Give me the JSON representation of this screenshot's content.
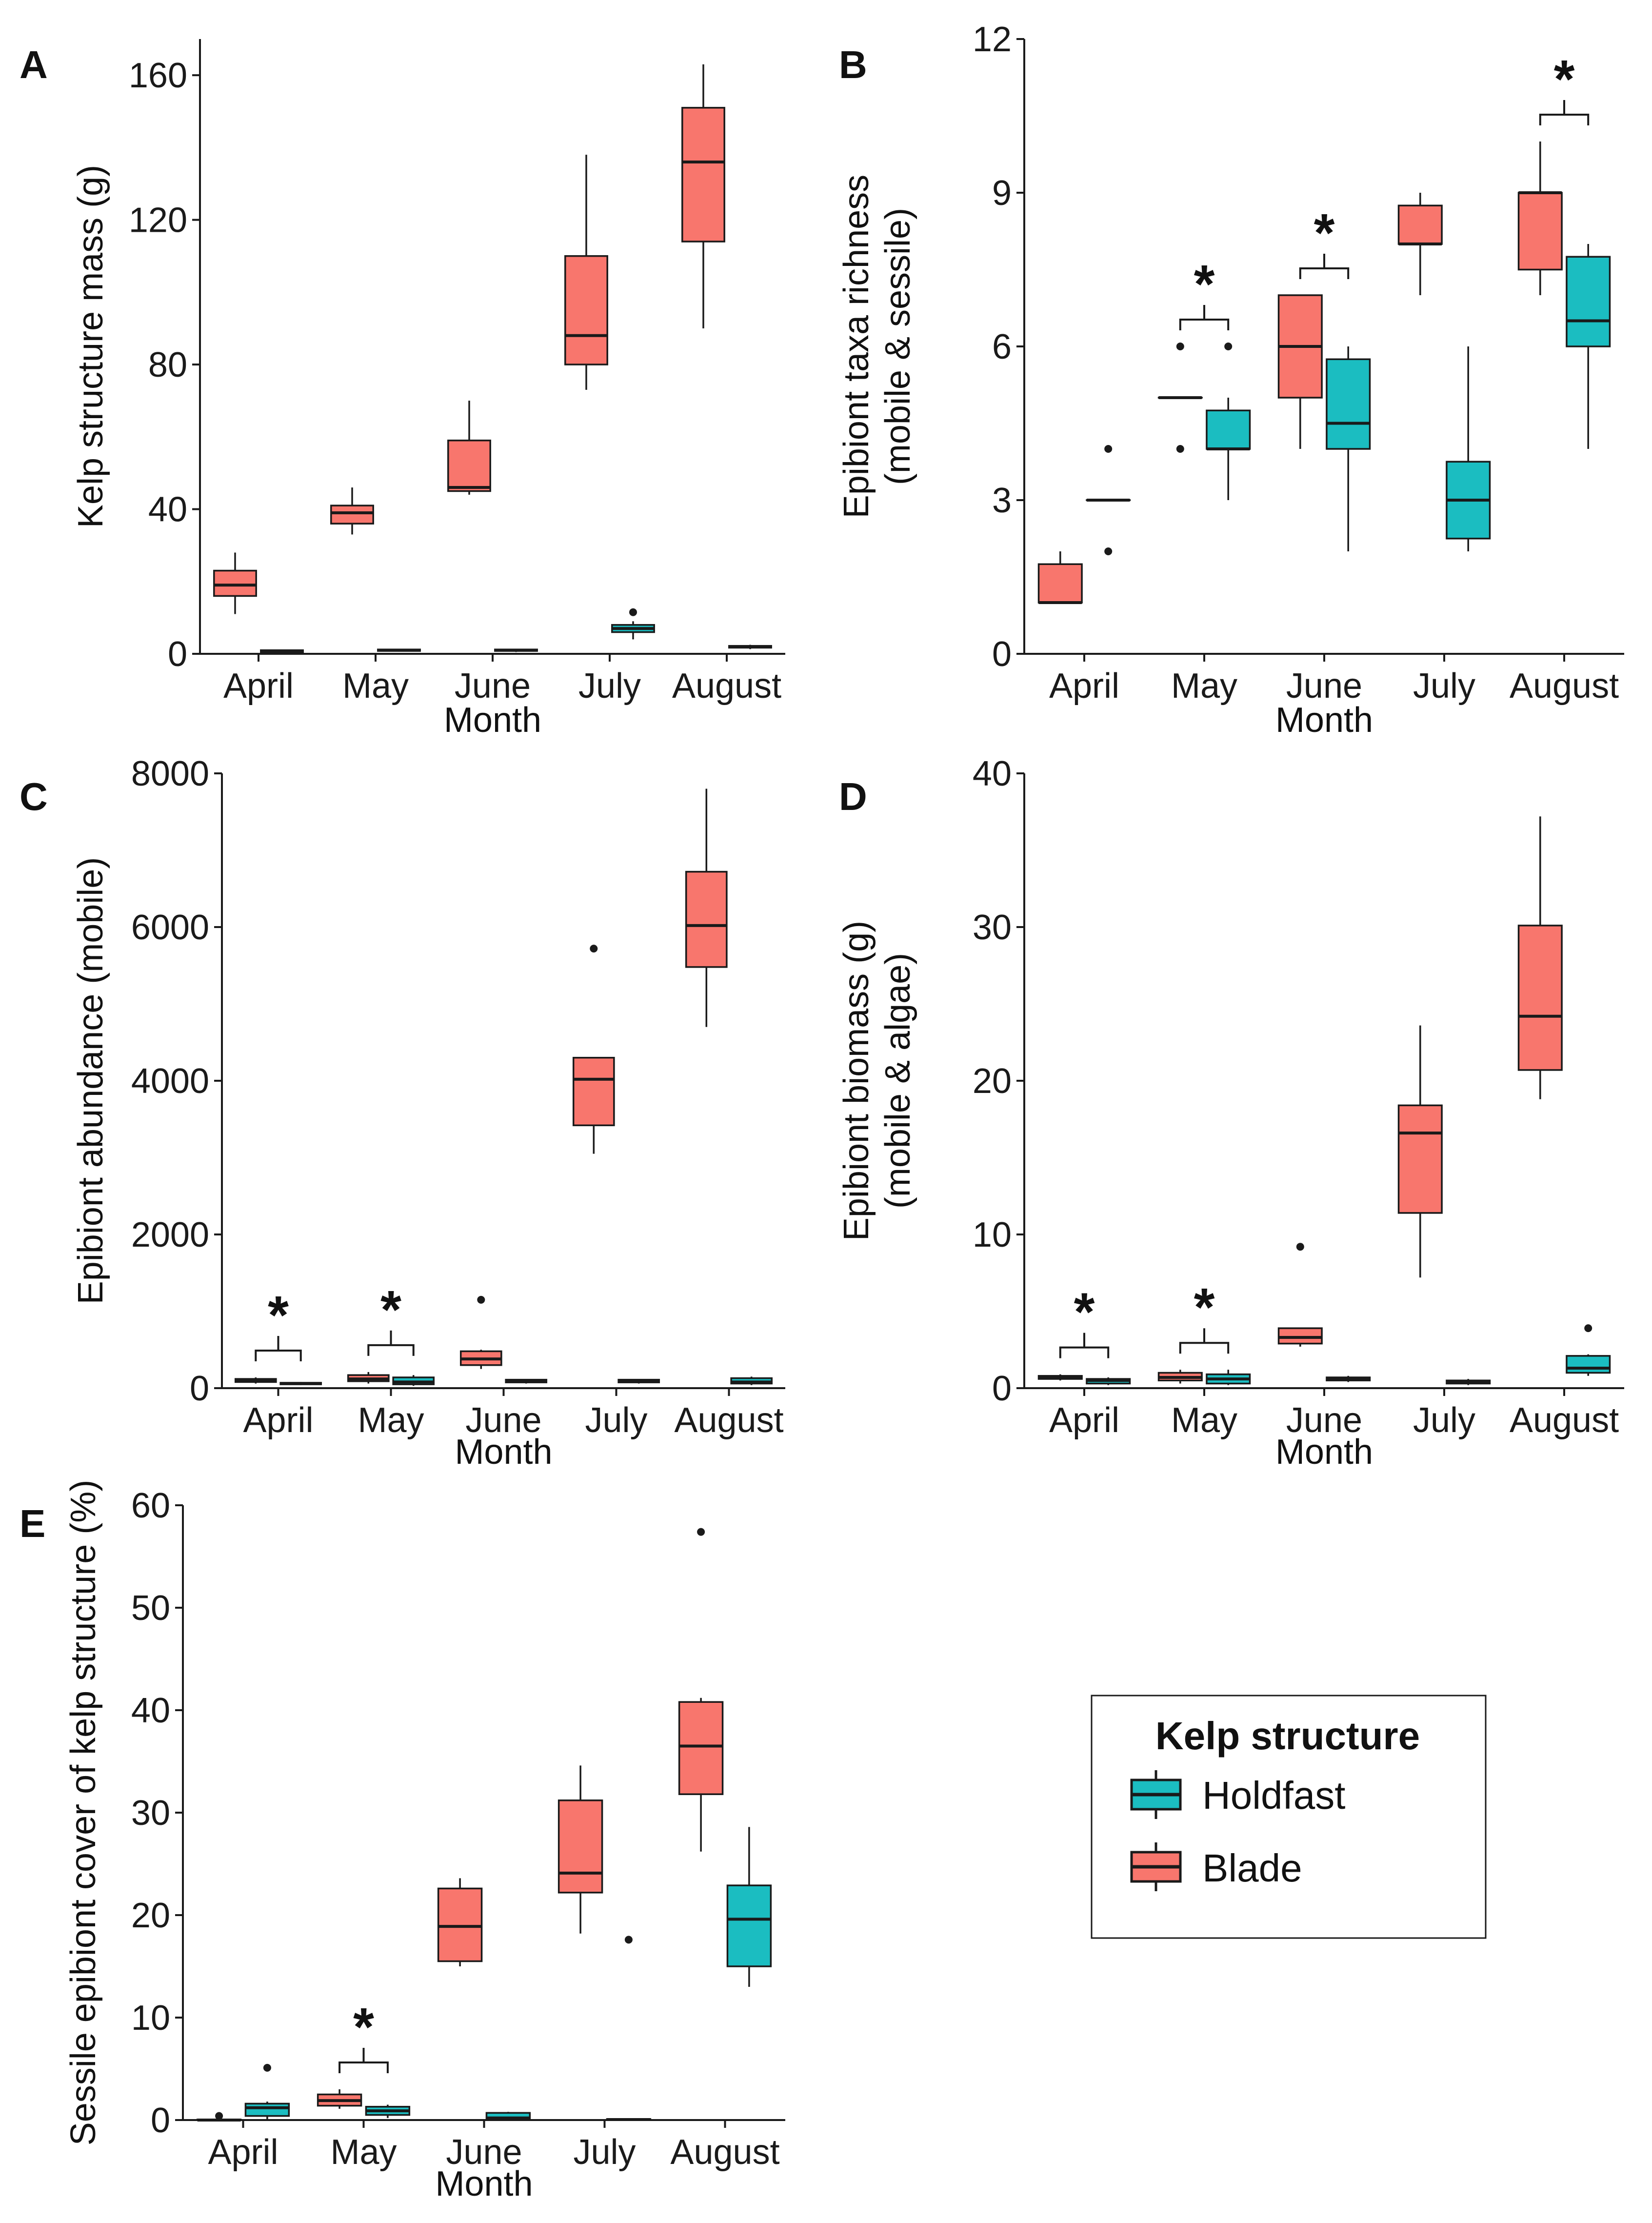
{
  "chart_data": [
    {
      "panel": "A",
      "type": "box",
      "title": "",
      "xlabel": "Month",
      "ylabel": "Kelp structure mass (g)",
      "ylim": [
        0,
        170
      ],
      "yticks": [
        0,
        40,
        80,
        120,
        160
      ],
      "categories": [
        "April",
        "May",
        "June",
        "July",
        "August"
      ],
      "significance": [],
      "series": [
        {
          "name": "Blade",
          "boxes": [
            {
              "min": 11,
              "q1": 16,
              "median": 19,
              "q3": 23,
              "max": 28,
              "outliers": []
            },
            {
              "min": 33,
              "q1": 36,
              "median": 39,
              "q3": 41,
              "max": 46,
              "outliers": []
            },
            {
              "min": 44,
              "q1": 45,
              "median": 46,
              "q3": 59,
              "max": 70,
              "outliers": []
            },
            {
              "min": 73,
              "q1": 80,
              "median": 88,
              "q3": 110,
              "max": 138,
              "outliers": []
            },
            {
              "min": 90,
              "q1": 114,
              "median": 136,
              "q3": 151,
              "max": 163,
              "outliers": []
            }
          ]
        },
        {
          "name": "Holdfast",
          "boxes": [
            {
              "min": 0.3,
              "q1": 0.5,
              "median": 0.8,
              "q3": 1,
              "max": 1.2,
              "outliers": []
            },
            {
              "min": 0.6,
              "q1": 0.8,
              "median": 1,
              "q3": 1.2,
              "max": 1.4,
              "outliers": []
            },
            {
              "min": 0.5,
              "q1": 0.8,
              "median": 1,
              "q3": 1.2,
              "max": 1.4,
              "outliers": []
            },
            {
              "min": 4,
              "q1": 6,
              "median": 7,
              "q3": 8,
              "max": 9,
              "outliers": [
                11.5
              ]
            },
            {
              "min": 1.3,
              "q1": 1.7,
              "median": 2,
              "q3": 2.2,
              "max": 2.5,
              "outliers": []
            }
          ]
        }
      ]
    },
    {
      "panel": "B",
      "type": "box",
      "title": "",
      "xlabel": "Month",
      "ylabel": "Epibiont taxa richness",
      "ylabel2": "(mobile & sessile)",
      "ylim": [
        0,
        12
      ],
      "yticks": [
        0,
        3,
        6,
        9,
        12
      ],
      "categories": [
        "April",
        "May",
        "June",
        "July",
        "August"
      ],
      "significance": [
        1,
        2,
        4
      ],
      "series": [
        {
          "name": "Blade",
          "boxes": [
            {
              "min": 1,
              "q1": 1,
              "median": 1,
              "q3": 1.75,
              "max": 2,
              "outliers": []
            },
            {
              "min": 5,
              "q1": 5,
              "median": 5,
              "q3": 5,
              "max": 5,
              "outliers": [
                4,
                6
              ]
            },
            {
              "min": 4,
              "q1": 5,
              "median": 6,
              "q3": 7,
              "max": 7,
              "outliers": []
            },
            {
              "min": 7,
              "q1": 8,
              "median": 8,
              "q3": 8.75,
              "max": 9,
              "outliers": []
            },
            {
              "min": 7,
              "q1": 7.5,
              "median": 9,
              "q3": 9,
              "max": 10,
              "outliers": []
            }
          ]
        },
        {
          "name": "Holdfast",
          "boxes": [
            {
              "min": 3,
              "q1": 3,
              "median": 3,
              "q3": 3,
              "max": 3,
              "outliers": [
                2,
                4
              ]
            },
            {
              "min": 3,
              "q1": 4,
              "median": 4,
              "q3": 4.75,
              "max": 5,
              "outliers": [
                6
              ]
            },
            {
              "min": 2,
              "q1": 4,
              "median": 4.5,
              "q3": 5.75,
              "max": 6,
              "outliers": []
            },
            {
              "min": 2,
              "q1": 2.25,
              "median": 3,
              "q3": 3.75,
              "max": 6,
              "outliers": []
            },
            {
              "min": 4,
              "q1": 6,
              "median": 6.5,
              "q3": 7.75,
              "max": 8,
              "outliers": []
            }
          ]
        }
      ]
    },
    {
      "panel": "C",
      "type": "box",
      "title": "",
      "xlabel": "Month",
      "ylabel": "Epibiont abundance (mobile)",
      "ylim": [
        0,
        8000
      ],
      "yticks": [
        0,
        2000,
        4000,
        6000,
        8000
      ],
      "categories": [
        "April",
        "May",
        "June",
        "July",
        "August"
      ],
      "significance": [
        0,
        1
      ],
      "series": [
        {
          "name": "Blade",
          "boxes": [
            {
              "min": 60,
              "q1": 80,
              "median": 100,
              "q3": 120,
              "max": 140,
              "outliers": []
            },
            {
              "min": 60,
              "q1": 90,
              "median": 120,
              "q3": 170,
              "max": 210,
              "outliers": []
            },
            {
              "min": 250,
              "q1": 300,
              "median": 380,
              "q3": 480,
              "max": 500,
              "outliers": [
                1150
              ]
            },
            {
              "min": 3050,
              "q1": 3420,
              "median": 4020,
              "q3": 4300,
              "max": 4300,
              "outliers": [
                5720
              ]
            },
            {
              "min": 4700,
              "q1": 5480,
              "median": 6020,
              "q3": 6720,
              "max": 7800,
              "outliers": []
            }
          ]
        },
        {
          "name": "Holdfast",
          "boxes": [
            {
              "min": 40,
              "q1": 50,
              "median": 60,
              "q3": 70,
              "max": 80,
              "outliers": []
            },
            {
              "min": 30,
              "q1": 50,
              "median": 80,
              "q3": 140,
              "max": 170,
              "outliers": []
            },
            {
              "min": 60,
              "q1": 75,
              "median": 90,
              "q3": 110,
              "max": 120,
              "outliers": []
            },
            {
              "min": 60,
              "q1": 75,
              "median": 90,
              "q3": 110,
              "max": 120,
              "outliers": []
            },
            {
              "min": 40,
              "q1": 60,
              "median": 80,
              "q3": 130,
              "max": 150,
              "outliers": []
            }
          ]
        }
      ]
    },
    {
      "panel": "D",
      "type": "box",
      "title": "",
      "xlabel": "Month",
      "ylabel": "Epibiont biomass (g)",
      "ylabel2": "(mobile & algae)",
      "ylim": [
        0,
        40
      ],
      "yticks": [
        0,
        10,
        20,
        30,
        40
      ],
      "categories": [
        "April",
        "May",
        "June",
        "July",
        "August"
      ],
      "significance": [
        0,
        1
      ],
      "series": [
        {
          "name": "Blade",
          "boxes": [
            {
              "min": 0.5,
              "q1": 0.6,
              "median": 0.7,
              "q3": 0.8,
              "max": 0.9,
              "outliers": []
            },
            {
              "min": 0.3,
              "q1": 0.5,
              "median": 0.7,
              "q3": 1,
              "max": 1.2,
              "outliers": []
            },
            {
              "min": 2.7,
              "q1": 2.9,
              "median": 3.3,
              "q3": 3.9,
              "max": 3.9,
              "outliers": [
                9.2
              ]
            },
            {
              "min": 7.2,
              "q1": 11.4,
              "median": 16.6,
              "q3": 18.4,
              "max": 23.6,
              "outliers": []
            },
            {
              "min": 18.8,
              "q1": 20.7,
              "median": 24.2,
              "q3": 30.1,
              "max": 37.2,
              "outliers": []
            }
          ]
        },
        {
          "name": "Holdfast",
          "boxes": [
            {
              "min": 0.2,
              "q1": 0.3,
              "median": 0.5,
              "q3": 0.6,
              "max": 0.7,
              "outliers": []
            },
            {
              "min": 0.2,
              "q1": 0.3,
              "median": 0.6,
              "q3": 0.9,
              "max": 1.2,
              "outliers": []
            },
            {
              "min": 0.4,
              "q1": 0.5,
              "median": 0.6,
              "q3": 0.7,
              "max": 0.8,
              "outliers": []
            },
            {
              "min": 0.2,
              "q1": 0.3,
              "median": 0.4,
              "q3": 0.5,
              "max": 0.6,
              "outliers": []
            },
            {
              "min": 0.8,
              "q1": 1,
              "median": 1.3,
              "q3": 2.1,
              "max": 2.2,
              "outliers": [
                3.9
              ]
            }
          ]
        }
      ]
    },
    {
      "panel": "E",
      "type": "box",
      "title": "",
      "xlabel": "Month",
      "ylabel": "Sessile epibiont cover of kelp structure (%)",
      "ylim": [
        0,
        60
      ],
      "yticks": [
        0,
        10,
        20,
        30,
        40,
        50,
        60
      ],
      "categories": [
        "April",
        "May",
        "June",
        "July",
        "August"
      ],
      "significance": [
        1
      ],
      "series": [
        {
          "name": "Blade",
          "boxes": [
            {
              "min": 0,
              "q1": 0,
              "median": 0,
              "q3": 0.05,
              "max": 0.1,
              "outliers": [
                0.4
              ]
            },
            {
              "min": 1.1,
              "q1": 1.4,
              "median": 1.9,
              "q3": 2.5,
              "max": 3,
              "outliers": []
            },
            {
              "min": 15,
              "q1": 15.5,
              "median": 18.9,
              "q3": 22.6,
              "max": 23.6,
              "outliers": []
            },
            {
              "min": 18.2,
              "q1": 22.2,
              "median": 24.1,
              "q3": 31.2,
              "max": 34.6,
              "outliers": []
            },
            {
              "min": 26.2,
              "q1": 31.8,
              "median": 36.5,
              "q3": 40.8,
              "max": 41.2,
              "outliers": [
                57.4
              ]
            }
          ]
        },
        {
          "name": "Holdfast",
          "boxes": [
            {
              "min": 0,
              "q1": 0.4,
              "median": 1.2,
              "q3": 1.6,
              "max": 1.8,
              "outliers": [
                5.1
              ]
            },
            {
              "min": 0.2,
              "q1": 0.5,
              "median": 0.9,
              "q3": 1.3,
              "max": 1.5,
              "outliers": []
            },
            {
              "min": 0,
              "q1": 0.1,
              "median": 0.2,
              "q3": 0.7,
              "max": 0.8,
              "outliers": []
            },
            {
              "min": 0,
              "q1": 0,
              "median": 0.05,
              "q3": 0.1,
              "max": 0.1,
              "outliers": [
                17.6
              ]
            },
            {
              "min": 13,
              "q1": 15,
              "median": 19.6,
              "q3": 22.9,
              "max": 28.6,
              "outliers": []
            }
          ]
        }
      ]
    }
  ],
  "legend": {
    "title": "Kelp structure",
    "entries": [
      {
        "label": "Holdfast",
        "color": "#1bbdc1"
      },
      {
        "label": "Blade",
        "color": "#f8766d"
      }
    ]
  },
  "colors": {
    "Blade": "#f8766d",
    "Holdfast": "#1bbdc1",
    "line": "#1a1a1a"
  },
  "significance_symbol": "*"
}
